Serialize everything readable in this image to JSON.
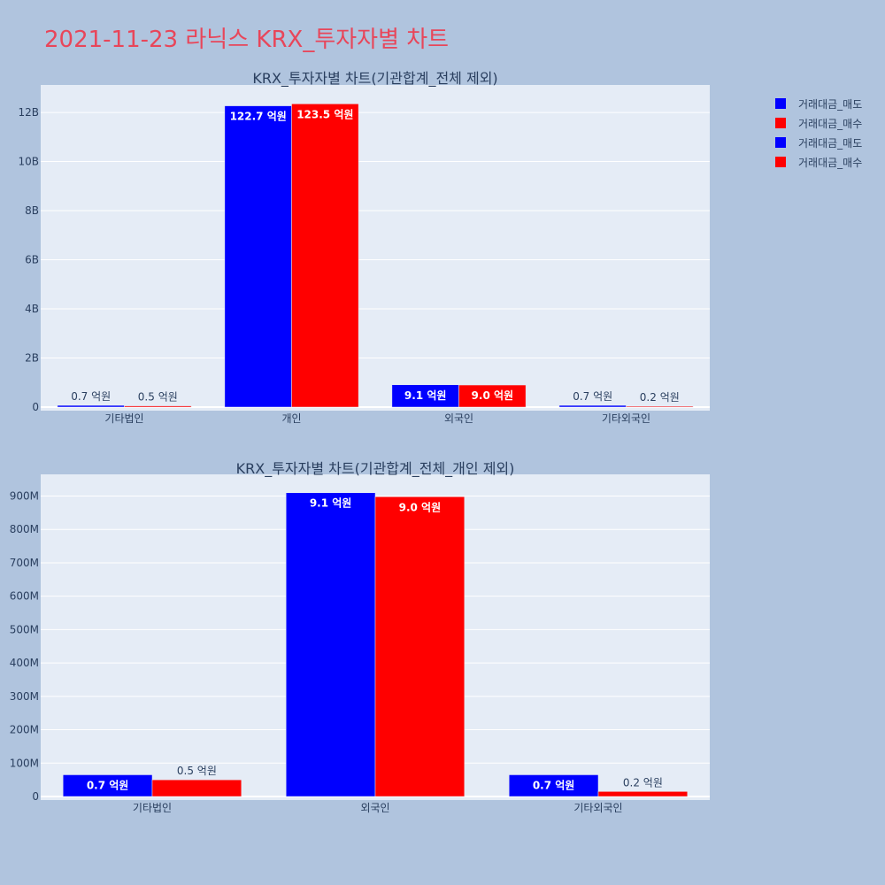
{
  "title": "2021-11-23 라닉스 KRX_투자자별 차트",
  "legend": [
    {
      "label": "거래대금_매도",
      "color": "#0000ff"
    },
    {
      "label": "거래대금_매수",
      "color": "#ff0000"
    },
    {
      "label": "거래대금_매도",
      "color": "#0000ff"
    },
    {
      "label": "거래대금_매수",
      "color": "#ff0000"
    }
  ],
  "chart_data": [
    {
      "type": "bar",
      "title": "KRX_투자자별 차트(기관합계_전체 제외)",
      "categories": [
        "기타법인",
        "개인",
        "외국인",
        "기타외국인"
      ],
      "series": [
        {
          "name": "거래대금_매도",
          "color": "#0000ff",
          "values": [
            70000000,
            12270000000,
            910000000,
            70000000
          ],
          "labels": [
            "0.7 억원",
            "122.7 억원",
            "9.1 억원",
            "0.7 억원"
          ]
        },
        {
          "name": "거래대금_매수",
          "color": "#ff0000",
          "values": [
            50000000,
            12350000000,
            900000000,
            20000000
          ],
          "labels": [
            "0.5 억원",
            "123.5 억원",
            "9.0 억원",
            "0.2 억원"
          ]
        }
      ],
      "yticks": [
        0,
        2000000000,
        4000000000,
        6000000000,
        8000000000,
        10000000000,
        12000000000
      ],
      "yticklabels": [
        "0",
        "2B",
        "4B",
        "6B",
        "8B",
        "10B",
        "12B"
      ],
      "ylim": [
        0,
        13120000000
      ],
      "grid": true
    },
    {
      "type": "bar",
      "title": "KRX_투자자별 차트(기관합계_전체_개인 제외)",
      "categories": [
        "기타법인",
        "외국인",
        "기타외국인"
      ],
      "series": [
        {
          "name": "거래대금_매도",
          "color": "#0000ff",
          "values": [
            65000000,
            910000000,
            65000000
          ],
          "labels": [
            "0.7 억원",
            "9.1 억원",
            "0.7 억원"
          ]
        },
        {
          "name": "거래대금_매수",
          "color": "#ff0000",
          "values": [
            50000000,
            898000000,
            15000000
          ],
          "labels": [
            "0.5 억원",
            "9.0 억원",
            "0.2 억원"
          ]
        }
      ],
      "yticks": [
        0,
        100000000,
        200000000,
        300000000,
        400000000,
        500000000,
        600000000,
        700000000,
        800000000,
        900000000
      ],
      "yticklabels": [
        "0",
        "100M",
        "200M",
        "300M",
        "400M",
        "500M",
        "600M",
        "700M",
        "800M",
        "900M"
      ],
      "ylim": [
        0,
        965000000
      ],
      "grid": true
    }
  ]
}
